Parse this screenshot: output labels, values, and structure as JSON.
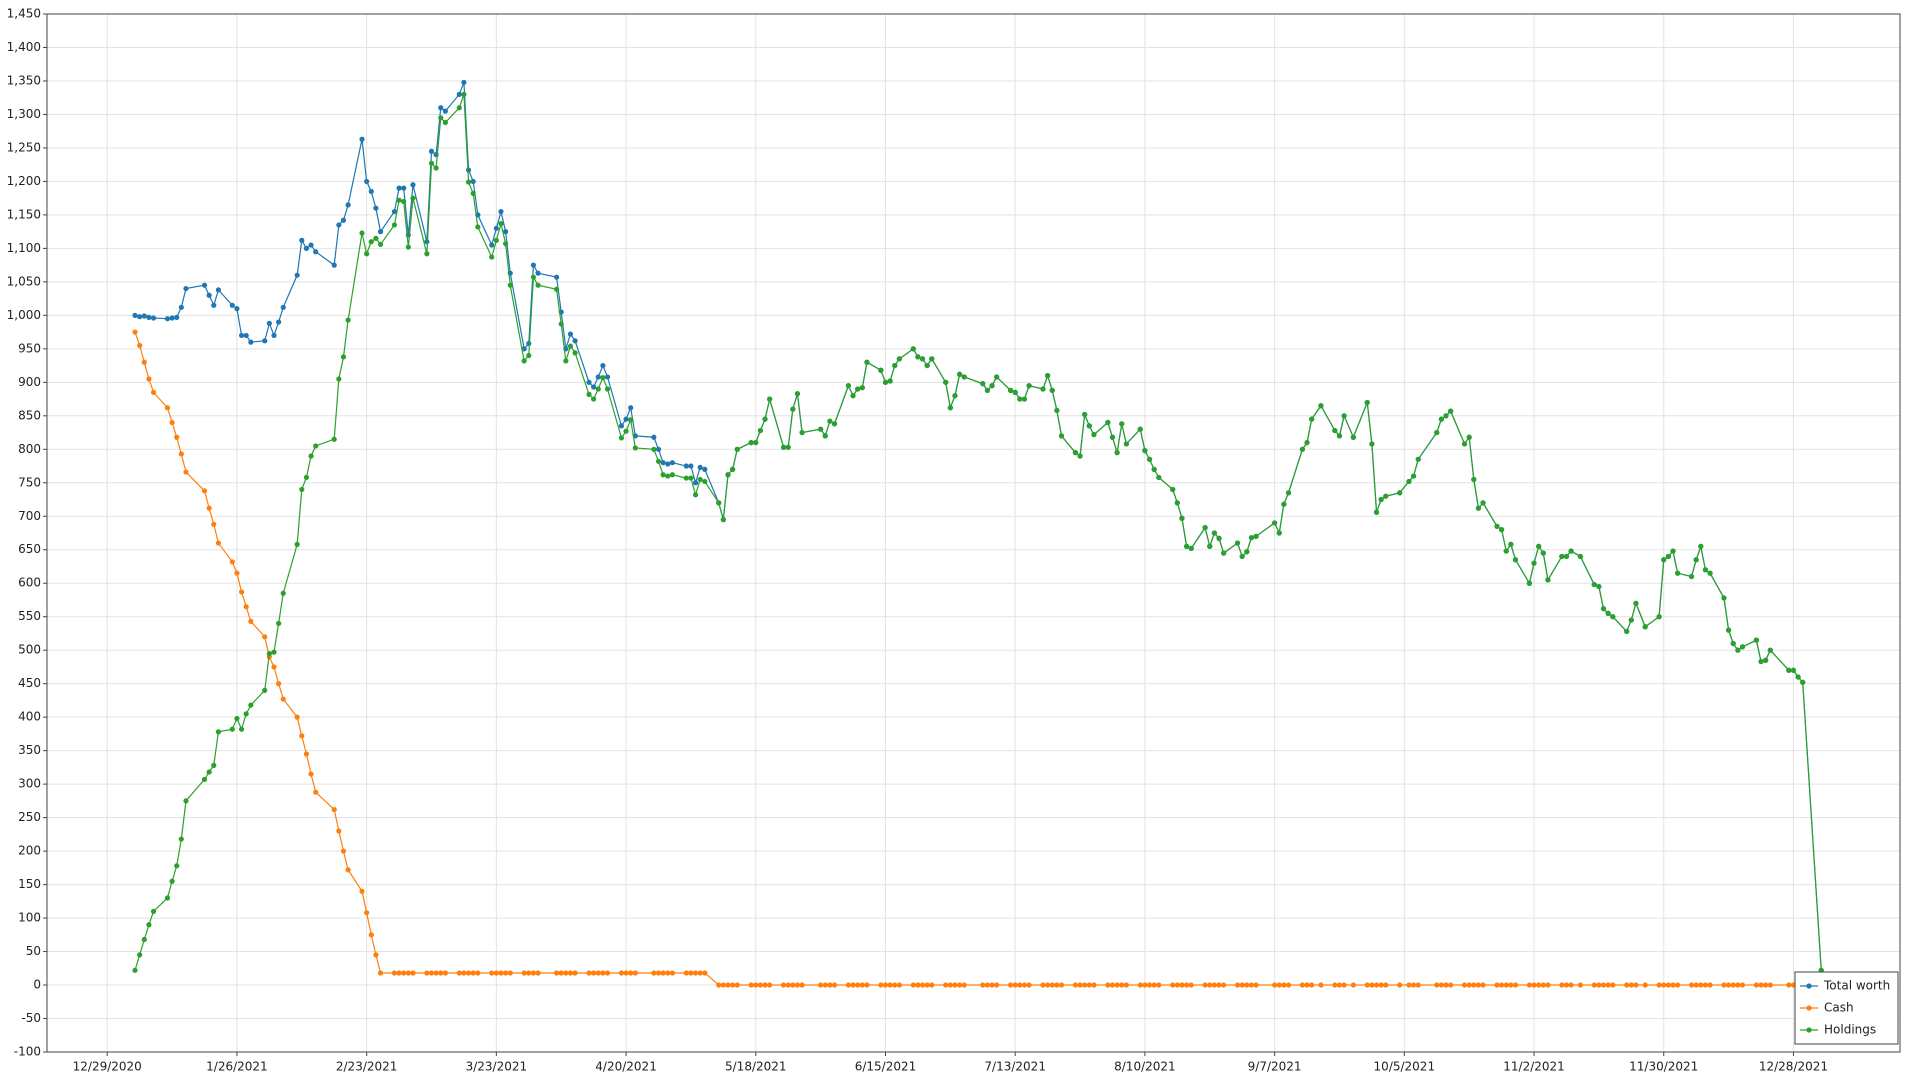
{
  "chart_data": {
    "type": "line",
    "x": [
      "1/4/2021",
      "1/5/2021",
      "1/6/2021",
      "1/7/2021",
      "1/8/2021",
      "1/11/2021",
      "1/12/2021",
      "1/13/2021",
      "1/14/2021",
      "1/15/2021",
      "1/19/2021",
      "1/20/2021",
      "1/21/2021",
      "1/22/2021",
      "1/25/2021",
      "1/26/2021",
      "1/27/2021",
      "1/28/2021",
      "1/29/2021",
      "2/1/2021",
      "2/2/2021",
      "2/3/2021",
      "2/4/2021",
      "2/5/2021",
      "2/8/2021",
      "2/9/2021",
      "2/10/2021",
      "2/11/2021",
      "2/12/2021",
      "2/16/2021",
      "2/17/2021",
      "2/18/2021",
      "2/19/2021",
      "2/22/2021",
      "2/23/2021",
      "2/24/2021",
      "2/25/2021",
      "2/26/2021",
      "3/1/2021",
      "3/2/2021",
      "3/3/2021",
      "3/4/2021",
      "3/5/2021",
      "3/8/2021",
      "3/9/2021",
      "3/10/2021",
      "3/11/2021",
      "3/12/2021",
      "3/15/2021",
      "3/16/2021",
      "3/17/2021",
      "3/18/2021",
      "3/19/2021",
      "3/22/2021",
      "3/23/2021",
      "3/24/2021",
      "3/25/2021",
      "3/26/2021",
      "3/29/2021",
      "3/30/2021",
      "3/31/2021",
      "4/1/2021",
      "4/5/2021",
      "4/6/2021",
      "4/7/2021",
      "4/8/2021",
      "4/9/2021",
      "4/12/2021",
      "4/13/2021",
      "4/14/2021",
      "4/15/2021",
      "4/16/2021",
      "4/19/2021",
      "4/20/2021",
      "4/21/2021",
      "4/22/2021",
      "4/26/2021",
      "4/27/2021",
      "4/28/2021",
      "4/29/2021",
      "4/30/2021",
      "5/3/2021",
      "5/4/2021",
      "5/5/2021",
      "5/6/2021",
      "5/7/2021",
      "5/10/2021",
      "5/11/2021",
      "5/12/2021",
      "5/13/2021",
      "5/14/2021",
      "5/17/2021",
      "5/18/2021",
      "5/19/2021",
      "5/20/2021",
      "5/21/2021",
      "5/24/2021",
      "5/25/2021",
      "5/26/2021",
      "5/27/2021",
      "5/28/2021",
      "6/1/2021",
      "6/2/2021",
      "6/3/2021",
      "6/4/2021",
      "6/7/2021",
      "6/8/2021",
      "6/9/2021",
      "6/10/2021",
      "6/11/2021",
      "6/14/2021",
      "6/15/2021",
      "6/16/2021",
      "6/17/2021",
      "6/18/2021",
      "6/21/2021",
      "6/22/2021",
      "6/23/2021",
      "6/24/2021",
      "6/25/2021",
      "6/28/2021",
      "6/29/2021",
      "6/30/2021",
      "7/1/2021",
      "7/2/2021",
      "7/6/2021",
      "7/7/2021",
      "7/8/2021",
      "7/9/2021",
      "7/12/2021",
      "7/13/2021",
      "7/14/2021",
      "7/15/2021",
      "7/16/2021",
      "7/19/2021",
      "7/20/2021",
      "7/21/2021",
      "7/22/2021",
      "7/23/2021",
      "7/26/2021",
      "7/27/2021",
      "7/28/2021",
      "7/29/2021",
      "7/30/2021",
      "8/2/2021",
      "8/3/2021",
      "8/4/2021",
      "8/5/2021",
      "8/6/2021",
      "8/9/2021",
      "8/10/2021",
      "8/11/2021",
      "8/12/2021",
      "8/13/2021",
      "8/16/2021",
      "8/17/2021",
      "8/18/2021",
      "8/19/2021",
      "8/20/2021",
      "8/23/2021",
      "8/24/2021",
      "8/25/2021",
      "8/26/2021",
      "8/27/2021",
      "8/30/2021",
      "8/31/2021",
      "9/1/2021",
      "9/2/2021",
      "9/3/2021",
      "9/7/2021",
      "9/8/2021",
      "9/9/2021",
      "9/10/2021",
      "9/13/2021",
      "9/14/2021",
      "9/15/2021",
      "9/17/2021",
      "9/20/2021",
      "9/21/2021",
      "9/22/2021",
      "9/24/2021",
      "9/27/2021",
      "9/28/2021",
      "9/29/2021",
      "9/30/2021",
      "10/1/2021",
      "10/4/2021",
      "10/6/2021",
      "10/7/2021",
      "10/8/2021",
      "10/12/2021",
      "10/13/2021",
      "10/14/2021",
      "10/15/2021",
      "10/18/2021",
      "10/19/2021",
      "10/20/2021",
      "10/21/2021",
      "10/22/2021",
      "10/25/2021",
      "10/26/2021",
      "10/27/2021",
      "10/28/2021",
      "10/29/2021",
      "11/1/2021",
      "11/2/2021",
      "11/3/2021",
      "11/4/2021",
      "11/5/2021",
      "11/8/2021",
      "11/9/2021",
      "11/10/2021",
      "11/12/2021",
      "11/15/2021",
      "11/16/2021",
      "11/17/2021",
      "11/18/2021",
      "11/19/2021",
      "11/22/2021",
      "11/23/2021",
      "11/24/2021",
      "11/26/2021",
      "11/29/2021",
      "11/30/2021",
      "12/1/2021",
      "12/2/2021",
      "12/3/2021",
      "12/6/2021",
      "12/7/2021",
      "12/8/2021",
      "12/9/2021",
      "12/10/2021",
      "12/13/2021",
      "12/14/2021",
      "12/15/2021",
      "12/16/2021",
      "12/17/2021",
      "12/20/2021",
      "12/21/2021",
      "12/22/2021",
      "12/23/2021",
      "12/27/2021",
      "12/28/2021",
      "12/29/2021",
      "12/30/2021",
      "1/3/2022"
    ],
    "series": [
      {
        "name": "Total worth",
        "color": "#1f77b4",
        "values": [
          1000,
          998,
          999,
          997,
          996,
          995,
          996,
          997,
          1012,
          1040,
          1045,
          1030,
          1015,
          1038,
          1015,
          1010,
          970,
          970,
          960,
          962,
          988,
          970,
          990,
          1012,
          1060,
          1112,
          1100,
          1105,
          1095,
          1075,
          1135,
          1142,
          1165,
          1263,
          1200,
          1185,
          1160,
          1125,
          1155,
          1190,
          1190,
          1120,
          1195,
          1110,
          1245,
          1240,
          1310,
          1305,
          1330,
          1348,
          1217,
          1200,
          1150,
          1105,
          1130,
          1155,
          1125,
          1063,
          950,
          958,
          1075,
          1063,
          1057,
          1005,
          950,
          972,
          962,
          900,
          893,
          908,
          925,
          908,
          835,
          845,
          862,
          820,
          818,
          800,
          780,
          778,
          780,
          775,
          775,
          750,
          773,
          770,
          720,
          695,
          762,
          770,
          800,
          810,
          810,
          828,
          845,
          875,
          803,
          803,
          860,
          883,
          825,
          830,
          820,
          842,
          838,
          895,
          880,
          890,
          892,
          930,
          918,
          900,
          902,
          925,
          935,
          950,
          938,
          935,
          925,
          935,
          900,
          862,
          880,
          912,
          908,
          898,
          888,
          895,
          908,
          888,
          885,
          875,
          875,
          895,
          890,
          910,
          888,
          858,
          820,
          795,
          790,
          852,
          835,
          822,
          840,
          818,
          795,
          838,
          808,
          830,
          798,
          785,
          770,
          758,
          740,
          720,
          697,
          655,
          652,
          683,
          655,
          675,
          667,
          645,
          660,
          640,
          647,
          668,
          670,
          690,
          675,
          718,
          735,
          800,
          810,
          845,
          865,
          828,
          820,
          850,
          818,
          870,
          808,
          706,
          725,
          730,
          735,
          752,
          760,
          785,
          825,
          845,
          850,
          857,
          808,
          818,
          755,
          712,
          720,
          685,
          680,
          648,
          658,
          635,
          600,
          630,
          655,
          645,
          605,
          640,
          640,
          648,
          640,
          598,
          595,
          562,
          555,
          550,
          528,
          545,
          570,
          535,
          550,
          635,
          640,
          648,
          615,
          610,
          635,
          655,
          620,
          615,
          578,
          530,
          510,
          500,
          505,
          515,
          483,
          485,
          500,
          470,
          470,
          460,
          452,
          22
        ]
      },
      {
        "name": "Cash",
        "color": "#ff7f0e",
        "values": [
          975,
          955,
          930,
          905,
          885,
          862,
          840,
          818,
          793,
          766,
          738,
          712,
          688,
          660,
          632,
          615,
          587,
          565,
          543,
          520,
          490,
          475,
          450,
          427,
          400,
          372,
          345,
          315,
          288,
          262,
          230,
          200,
          172,
          140,
          108,
          75,
          45,
          18,
          18,
          18,
          18,
          18,
          18,
          18,
          18,
          18,
          18,
          18,
          18,
          18,
          18,
          18,
          18,
          18,
          18,
          18,
          18,
          18,
          18,
          18,
          18,
          18,
          18,
          18,
          18,
          18,
          18,
          18,
          18,
          18,
          18,
          18,
          18,
          18,
          18,
          18,
          18,
          18,
          18,
          18,
          18,
          18,
          18,
          18,
          18,
          18,
          0,
          0,
          0,
          0,
          0,
          0,
          0,
          0,
          0,
          0,
          0,
          0,
          0,
          0,
          0,
          0,
          0,
          0,
          0,
          0,
          0,
          0,
          0,
          0,
          0,
          0,
          0,
          0,
          0,
          0,
          0,
          0,
          0,
          0,
          0,
          0,
          0,
          0,
          0,
          0,
          0,
          0,
          0,
          0,
          0,
          0,
          0,
          0,
          0,
          0,
          0,
          0,
          0,
          0,
          0,
          0,
          0,
          0,
          0,
          0,
          0,
          0,
          0,
          0,
          0,
          0,
          0,
          0,
          0,
          0,
          0,
          0,
          0,
          0,
          0,
          0,
          0,
          0,
          0,
          0,
          0,
          0,
          0,
          0,
          0,
          0,
          0,
          0,
          0,
          0,
          0,
          0,
          0,
          0,
          0,
          0,
          0,
          0,
          0,
          0,
          0,
          0,
          0,
          0,
          0,
          0,
          0,
          0,
          0,
          0,
          0,
          0,
          0,
          0,
          0,
          0,
          0,
          0,
          0,
          0,
          0,
          0,
          0,
          0,
          0,
          0,
          0,
          0,
          0,
          0,
          0,
          0,
          0,
          0,
          0,
          0,
          0,
          0,
          0,
          0,
          0,
          0,
          0,
          0,
          0,
          0,
          0,
          0,
          0,
          0,
          0,
          0,
          0,
          0,
          0,
          0,
          0,
          0,
          0,
          0
        ]
      },
      {
        "name": "Holdings",
        "color": "#2ca02c",
        "values": [
          22,
          45,
          68,
          90,
          110,
          130,
          155,
          178,
          218,
          275,
          307,
          318,
          328,
          378,
          382,
          398,
          382,
          405,
          418,
          440,
          495,
          497,
          540,
          585,
          658,
          740,
          758,
          790,
          805,
          815,
          905,
          938,
          993,
          1123,
          1092,
          1110,
          1115,
          1106,
          1135,
          1172,
          1170,
          1102,
          1175,
          1092,
          1227,
          1220,
          1295,
          1288,
          1310,
          1330,
          1199,
          1182,
          1132,
          1087,
          1112,
          1137,
          1107,
          1045,
          932,
          940,
          1057,
          1045,
          1039,
          987,
          932,
          954,
          944,
          882,
          875,
          890,
          907,
          890,
          817,
          827,
          844,
          802,
          800,
          782,
          762,
          760,
          762,
          757,
          757,
          732,
          755,
          752,
          720,
          695,
          762,
          770,
          800,
          810,
          810,
          828,
          845,
          875,
          803,
          803,
          860,
          883,
          825,
          830,
          820,
          842,
          838,
          895,
          880,
          890,
          892,
          930,
          918,
          900,
          902,
          925,
          935,
          950,
          938,
          935,
          925,
          935,
          900,
          862,
          880,
          912,
          908,
          898,
          888,
          895,
          908,
          888,
          885,
          875,
          875,
          895,
          890,
          910,
          888,
          858,
          820,
          795,
          790,
          852,
          835,
          822,
          840,
          818,
          795,
          838,
          808,
          830,
          798,
          785,
          770,
          758,
          740,
          720,
          697,
          655,
          652,
          683,
          655,
          675,
          667,
          645,
          660,
          640,
          647,
          668,
          670,
          690,
          675,
          718,
          735,
          800,
          810,
          845,
          865,
          828,
          820,
          850,
          818,
          870,
          808,
          706,
          725,
          730,
          735,
          752,
          760,
          785,
          825,
          845,
          850,
          857,
          808,
          818,
          755,
          712,
          720,
          685,
          680,
          648,
          658,
          635,
          600,
          630,
          655,
          645,
          605,
          640,
          640,
          648,
          640,
          598,
          595,
          562,
          555,
          550,
          528,
          545,
          570,
          535,
          550,
          635,
          640,
          648,
          615,
          610,
          635,
          655,
          620,
          615,
          578,
          530,
          510,
          500,
          505,
          515,
          483,
          485,
          500,
          470,
          470,
          460,
          452,
          22
        ]
      }
    ],
    "xlim": [
      "12/16/2020",
      "1/20/2022"
    ],
    "xticks": [
      "12/29/2020",
      "1/26/2021",
      "2/23/2021",
      "3/23/2021",
      "4/20/2021",
      "5/18/2021",
      "6/15/2021",
      "7/13/2021",
      "8/10/2021",
      "9/7/2021",
      "10/5/2021",
      "11/2/2021",
      "11/30/2021",
      "12/28/2021"
    ],
    "ylim": [
      -100,
      1450
    ],
    "yticks": [
      -100,
      -50,
      0,
      50,
      100,
      150,
      200,
      250,
      300,
      350,
      400,
      450,
      500,
      550,
      600,
      650,
      700,
      750,
      800,
      850,
      900,
      950,
      {
        "value": 1000,
        "label": "1,000"
      },
      {
        "value": 1050,
        "label": "1,050"
      },
      {
        "value": 1100,
        "label": "1,100"
      },
      {
        "value": 1150,
        "label": "1,150"
      },
      {
        "value": 1200,
        "label": "1,200"
      },
      {
        "value": 1250,
        "label": "1,250"
      },
      {
        "value": 1300,
        "label": "1,300"
      },
      {
        "value": 1350,
        "label": "1,350"
      },
      {
        "value": 1400,
        "label": "1,400"
      },
      {
        "value": 1450,
        "label": "1,450"
      }
    ],
    "grid": true,
    "markers": true,
    "legend": "lower right"
  }
}
